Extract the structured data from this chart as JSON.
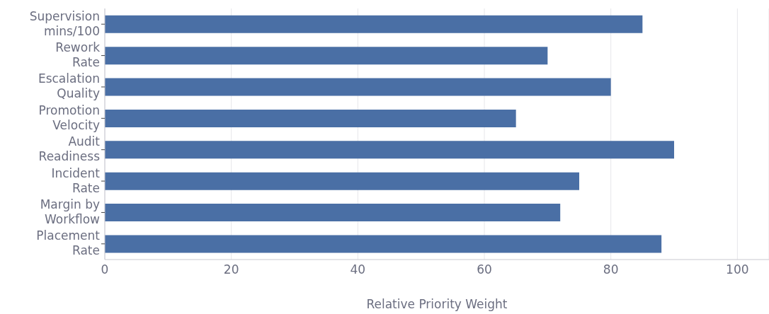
{
  "chart_data": {
    "type": "bar",
    "orientation": "horizontal",
    "xlabel": "Relative Priority Weight",
    "categories": [
      "Supervision\nmins/100",
      "Rework\nRate",
      "Escalation\nQuality",
      "Promotion\nVelocity",
      "Audit\nReadiness",
      "Incident\nRate",
      "Margin by\nWorkflow",
      "Placement\nRate"
    ],
    "values": [
      85,
      70,
      80,
      65,
      90,
      75,
      72,
      88
    ],
    "color": "#4a6fa5",
    "xlim": [
      0,
      105
    ],
    "xticks": [
      0,
      20,
      40,
      60,
      80,
      100
    ],
    "grid": "x",
    "legend": false
  }
}
